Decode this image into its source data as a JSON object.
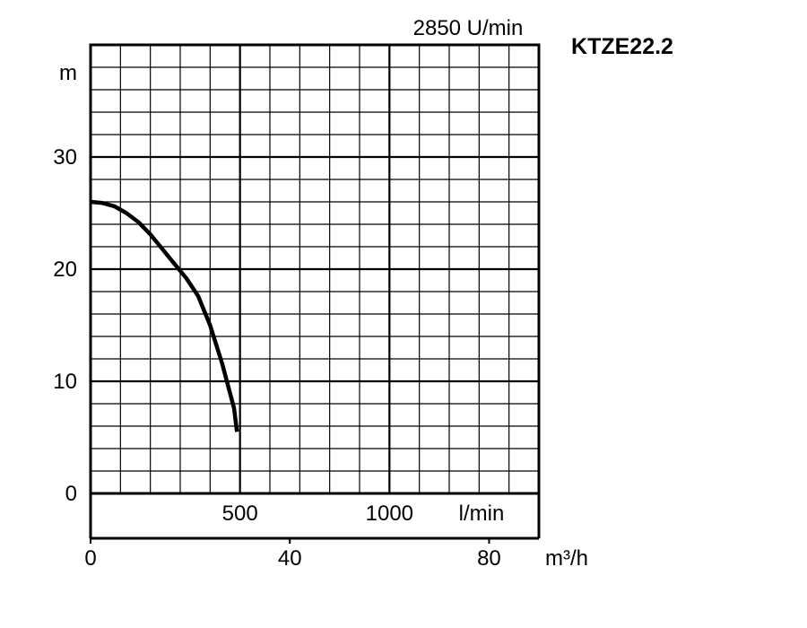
{
  "chart_data": {
    "type": "line",
    "title": "KTZE22.2",
    "subtitle": "2850 U/min",
    "ylabel": "m",
    "ylim": [
      0,
      40
    ],
    "yticks": [
      0,
      10,
      20,
      30
    ],
    "x_primary": {
      "unit": "l/min",
      "ticks": [
        500,
        1000
      ],
      "range": [
        0,
        1500
      ]
    },
    "x_secondary": {
      "unit": "m³/h",
      "ticks": [
        0,
        40,
        80
      ],
      "range": [
        0,
        90
      ]
    },
    "grid": true,
    "series": [
      {
        "name": "",
        "x_unit": "l/min",
        "x": [
          0,
          40,
          80,
          120,
          160,
          200,
          240,
          280,
          320,
          360,
          400,
          440,
          480,
          490
        ],
        "y": [
          26,
          25.9,
          25.6,
          25,
          24.2,
          23.1,
          21.8,
          20.5,
          19.2,
          17.6,
          15,
          11.6,
          7.6,
          5.5
        ]
      }
    ]
  }
}
